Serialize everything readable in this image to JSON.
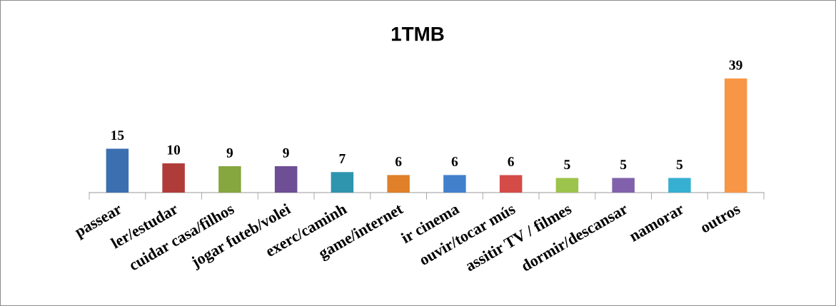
{
  "chart_data": {
    "type": "bar",
    "title": "1TMB",
    "categories": [
      "passear",
      "ler/estudar",
      "cuidar casa/filhos",
      "jogar futeb/volei",
      "exerc/caminh",
      "game/internet",
      "ir cinema",
      "ouvir/tocar mús",
      "assitir TV / filmes",
      "dormir/descansar",
      "namorar",
      "outros"
    ],
    "values": [
      15,
      10,
      9,
      9,
      7,
      6,
      6,
      6,
      5,
      5,
      5,
      39
    ],
    "colors": [
      "#3b6fb0",
      "#b03c3a",
      "#86a63f",
      "#6e4e94",
      "#2f94ad",
      "#e0802a",
      "#4280cc",
      "#d44b48",
      "#9cc34c",
      "#8161ab",
      "#37afd1",
      "#f79646"
    ],
    "data_labels": true,
    "tick_labels": "x"
  }
}
